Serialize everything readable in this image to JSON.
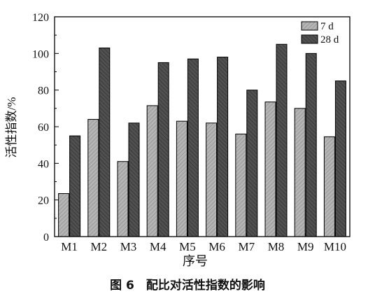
{
  "chart_data": {
    "type": "bar",
    "title": "",
    "xlabel": "序号",
    "ylabel": "活性指数/%",
    "ylim": [
      0,
      120
    ],
    "yticks": [
      0,
      20,
      40,
      60,
      80,
      100,
      120
    ],
    "categories": [
      "M1",
      "M2",
      "M3",
      "M4",
      "M5",
      "M6",
      "M7",
      "M8",
      "M9",
      "M10"
    ],
    "series": [
      {
        "name": "7 d",
        "color": "#a9a9a9",
        "pattern": "hatch-light",
        "values": [
          23.5,
          64,
          41,
          71.5,
          63,
          62,
          56,
          73.5,
          70,
          54.5
        ]
      },
      {
        "name": "28 d",
        "color": "#4d4d4d",
        "pattern": "hatch-dark",
        "values": [
          55,
          103,
          62,
          95,
          97,
          98,
          80,
          105,
          100,
          85
        ]
      }
    ],
    "legend_position": "top-right",
    "grid": false
  },
  "caption": "图 6　配比对活性指数的影响"
}
